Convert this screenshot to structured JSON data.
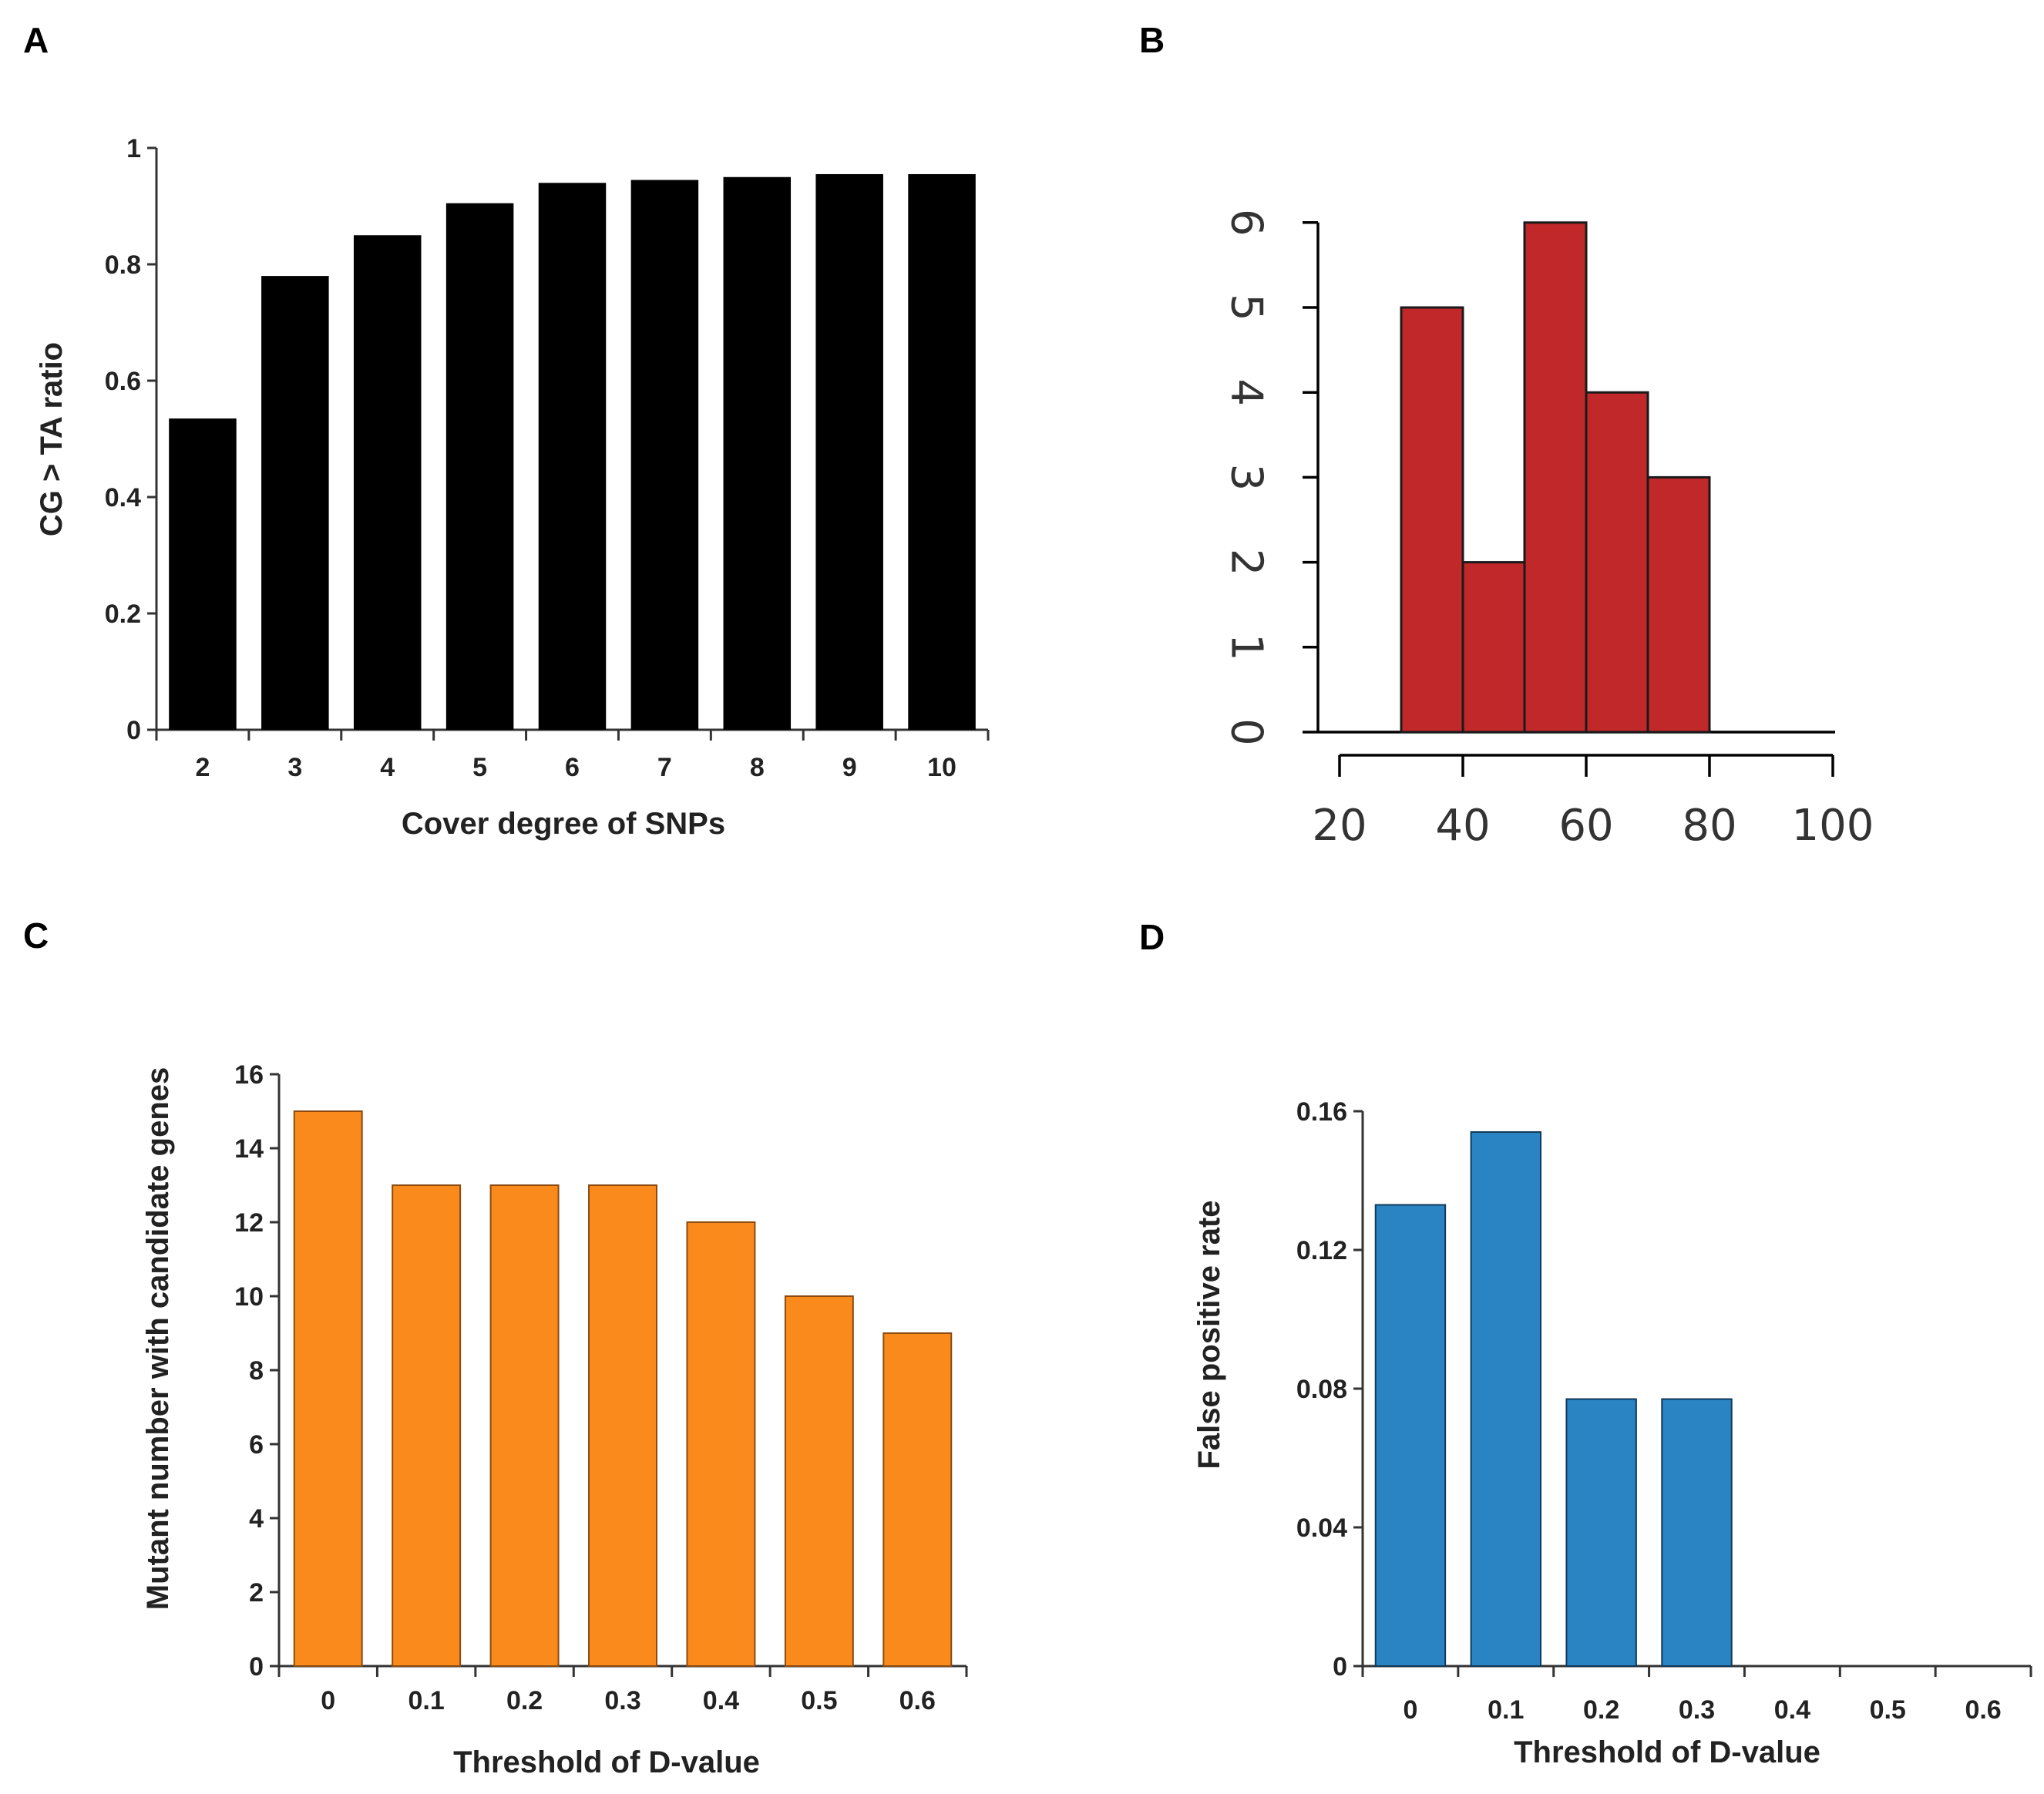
{
  "chart_data": [
    {
      "panel": "A",
      "type": "bar",
      "categories": [
        "2",
        "3",
        "4",
        "5",
        "6",
        "7",
        "8",
        "9",
        "10"
      ],
      "values": [
        0.535,
        0.78,
        0.85,
        0.905,
        0.94,
        0.945,
        0.95,
        0.955,
        0.955
      ],
      "xlabel": "Cover degree of SNPs",
      "ylabel": "CG > TA ratio",
      "ylim": [
        0,
        1
      ],
      "yticks": [
        "0",
        "0.2",
        "0.4",
        "0.6",
        "0.8",
        "1"
      ],
      "ytick_values": [
        0,
        0.2,
        0.4,
        0.6,
        0.8,
        1
      ],
      "color": "#000000"
    },
    {
      "panel": "B",
      "type": "bar",
      "subtype": "histogram",
      "bins": [
        [
          30,
          40
        ],
        [
          40,
          50
        ],
        [
          50,
          60
        ],
        [
          60,
          70
        ],
        [
          70,
          80
        ]
      ],
      "values": [
        5,
        2,
        6,
        4,
        3
      ],
      "xlim": [
        20,
        100
      ],
      "ylim": [
        0,
        6
      ],
      "xticks": [
        "20",
        "40",
        "60",
        "80",
        "100"
      ],
      "xtick_values": [
        20,
        40,
        60,
        80,
        100
      ],
      "yticks": [
        "0",
        "1",
        "2",
        "3",
        "4",
        "5",
        "6"
      ],
      "ytick_values": [
        0,
        1,
        2,
        3,
        4,
        5,
        6
      ],
      "color": "#c0282a"
    },
    {
      "panel": "C",
      "type": "bar",
      "categories": [
        "0",
        "0.1",
        "0.2",
        "0.3",
        "0.4",
        "0.5",
        "0.6"
      ],
      "values": [
        15,
        13,
        13,
        13,
        12,
        10,
        9
      ],
      "xlabel": "Threshold of D-value",
      "ylabel": "Mutant number with candidate genes",
      "ylim": [
        0,
        16
      ],
      "yticks": [
        "0",
        "2",
        "4",
        "6",
        "8",
        "10",
        "12",
        "14",
        "16"
      ],
      "ytick_values": [
        0,
        2,
        4,
        6,
        8,
        10,
        12,
        14,
        16
      ],
      "color": "#fb8a1c"
    },
    {
      "panel": "D",
      "type": "bar",
      "categories": [
        "0",
        "0.1",
        "0.2",
        "0.3",
        "0.4",
        "0.5",
        "0.6"
      ],
      "values": [
        0.133,
        0.154,
        0.077,
        0.077,
        0,
        0,
        0
      ],
      "xlabel": "Threshold of D-value",
      "ylabel": "False positive rate",
      "ylim": [
        0,
        0.16
      ],
      "yticks": [
        "0",
        "0.04",
        "0.08",
        "0.12",
        "0.16"
      ],
      "ytick_values": [
        0,
        0.04,
        0.08,
        0.12,
        0.16
      ],
      "color": "#2a84c4"
    }
  ]
}
